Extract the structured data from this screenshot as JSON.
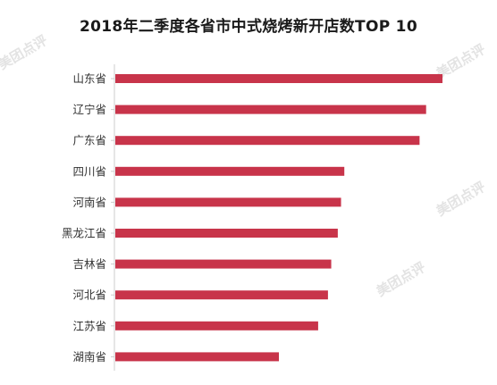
{
  "chart_data": {
    "type": "bar",
    "orientation": "horizontal",
    "title": "2018年二季度各省市中式烧烤新开店数TOP 10",
    "categories": [
      "山东省",
      "辽宁省",
      "广东省",
      "四川省",
      "河南省",
      "黑龙江省",
      "吉林省",
      "河北省",
      "江苏省",
      "湖南省"
    ],
    "values": [
      100,
      95,
      93,
      70,
      69,
      68,
      66,
      65,
      62,
      50
    ],
    "bar_color": "#c8344a",
    "xlim": [
      0,
      100
    ],
    "axis_color": "#cccccc",
    "grid": false,
    "legend": "none",
    "value_axis_labels": false
  },
  "watermark": {
    "text": "美团点评",
    "color": "#e3e3e3"
  }
}
